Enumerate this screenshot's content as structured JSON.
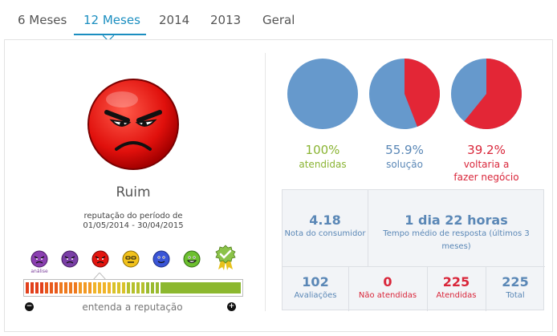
{
  "tabs": [
    {
      "label": "6 Meses"
    },
    {
      "label": "12 Meses"
    },
    {
      "label": "2014"
    },
    {
      "label": "2013"
    },
    {
      "label": "Geral"
    }
  ],
  "reputation": {
    "word": "Ruim",
    "period_label": "reputação do período de",
    "period_range": "01/05/2014 - 30/04/2015",
    "analysis_label": "análise",
    "understand_link": "entenda a reputação",
    "minus": "−",
    "plus": "+"
  },
  "pies": [
    {
      "pct": "100%",
      "label_lines": [
        "atendidas"
      ],
      "fraction_red": 0.0,
      "color": "#8ab433"
    },
    {
      "pct": "55.9%",
      "label_lines": [
        "solução"
      ],
      "fraction_red": 0.441,
      "color": "#5a87b6"
    },
    {
      "pct": "39.2%",
      "label_lines": [
        "voltaria a",
        "fazer negócio"
      ],
      "fraction_red": 0.608,
      "color": "#d9263a"
    }
  ],
  "colors": {
    "pie_blue": "#6699cc",
    "pie_red": "#e32636",
    "accent": "#1b8ec0"
  },
  "stats": {
    "consumer_score_value": "4.18",
    "consumer_score_label": "Nota do consumidor",
    "response_time_value": "1 dia 22 horas",
    "response_time_label_1": "Tempo médio de resposta (últimos 3",
    "response_time_label_2": "meses)",
    "reviews_value": "102",
    "reviews_label": "Avaliações",
    "unanswered_value": "0",
    "unanswered_label": "Não atendidas",
    "answered_value": "225",
    "answered_label": "Atendidas",
    "total_value": "225",
    "total_label": "Total"
  }
}
